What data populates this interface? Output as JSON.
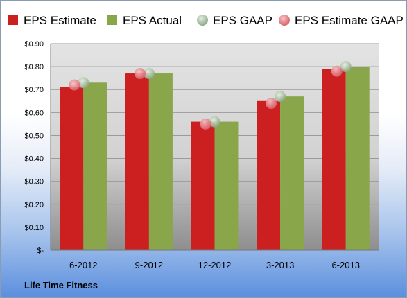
{
  "company": "Life Time Fitness",
  "colors": {
    "estimate": "#cc1f1f",
    "actual": "#8aa64a",
    "gaap": "#9fb69a",
    "estimate_gaap": "#e77f86"
  },
  "chart_data": {
    "type": "bar",
    "categories": [
      "6-2012",
      "9-2012",
      "12-2012",
      "3-2013",
      "6-2013"
    ],
    "series": [
      {
        "name": "EPS Estimate",
        "values": [
          0.71,
          0.77,
          0.56,
          0.65,
          0.79
        ]
      },
      {
        "name": "EPS Actual",
        "values": [
          0.73,
          0.77,
          0.56,
          0.67,
          0.8
        ]
      }
    ],
    "markers": [
      {
        "name": "EPS GAAP",
        "values": [
          0.73,
          0.77,
          0.56,
          0.67,
          0.8
        ]
      },
      {
        "name": "EPS Estimate GAAP",
        "values": [
          0.72,
          0.77,
          0.55,
          0.64,
          0.78
        ]
      }
    ],
    "yticks": [
      "$-",
      "$0.10",
      "$0.20",
      "$0.30",
      "$0.40",
      "$0.50",
      "$0.60",
      "$0.70",
      "$0.80",
      "$0.90"
    ],
    "ylim": [
      0,
      0.9
    ],
    "grid": true,
    "legend": "top"
  }
}
